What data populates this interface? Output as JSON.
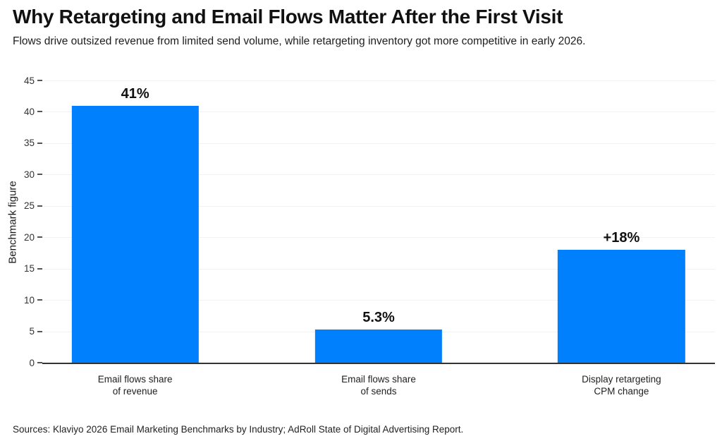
{
  "chart_data": {
    "type": "bar",
    "title": "Why Retargeting and Email Flows Matter After the First Visit",
    "subtitle": "Flows drive outsized revenue from limited send volume, while retargeting inventory got more competitive in early 2026.",
    "ylabel": "Benchmark figure",
    "xlabel": "",
    "ylim": [
      0,
      45
    ],
    "yticks": [
      0,
      5,
      10,
      15,
      20,
      25,
      30,
      35,
      40,
      45
    ],
    "grid": true,
    "legend": false,
    "bar_color": "#0080fc",
    "categories": [
      "Email flows share of revenue",
      "Email flows share of sends",
      "Display retargeting CPM change"
    ],
    "category_lines": [
      [
        "Email flows share",
        "of revenue"
      ],
      [
        "Email flows share",
        "of sends"
      ],
      [
        "Display retargeting",
        "CPM change"
      ]
    ],
    "values": [
      41,
      5.3,
      18
    ],
    "bar_labels": [
      "41%",
      "5.3%",
      "+18%"
    ],
    "bar_centers_pct": [
      13.8,
      50,
      86.1
    ]
  },
  "footer": {
    "source": "Sources: Klaviyo 2026 Email Marketing Benchmarks by Industry; AdRoll State of Digital Advertising Report."
  }
}
